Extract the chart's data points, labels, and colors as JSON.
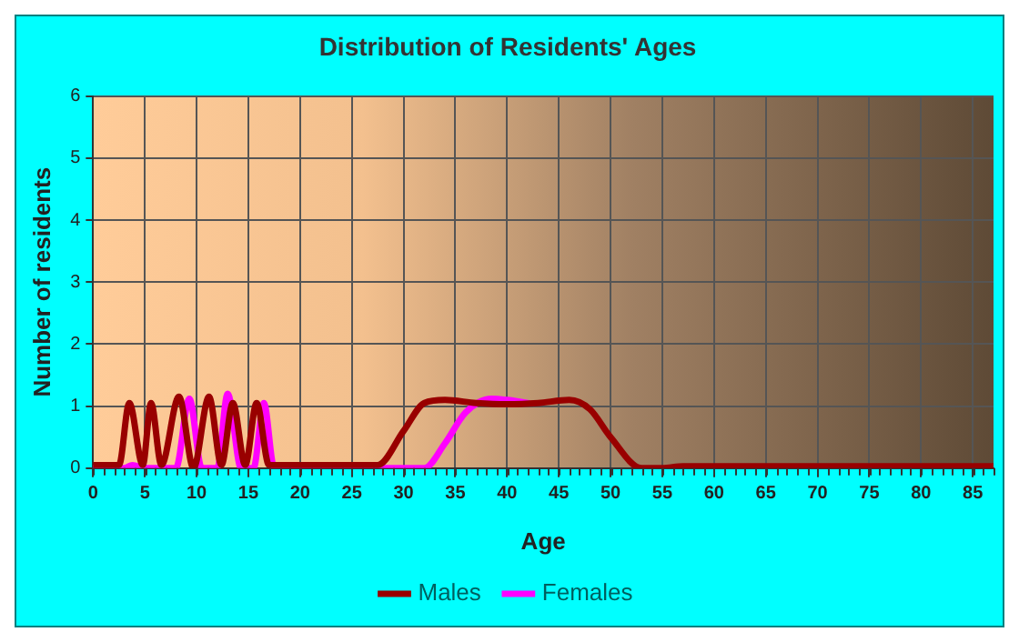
{
  "chart_data": {
    "type": "line",
    "title": "Distribution of Residents' Ages",
    "xlabel": "Age",
    "ylabel": "Number of residents",
    "xlim": [
      0,
      87
    ],
    "xticks": [
      0,
      5,
      10,
      15,
      20,
      25,
      30,
      35,
      40,
      45,
      50,
      55,
      60,
      65,
      70,
      75,
      80,
      85
    ],
    "ylim": [
      0,
      6
    ],
    "yticks": [
      0,
      1,
      2,
      3,
      4,
      5,
      6
    ],
    "grid": true,
    "legend": "bottom",
    "marker": "none",
    "line_style": "solid",
    "series": [
      {
        "name": "Males",
        "color": "#990000",
        "x": [
          0,
          2.5,
          3.5,
          4.8,
          5.6,
          6.6,
          8.3,
          9.7,
          11.2,
          12.4,
          13.5,
          14.7,
          15.8,
          17,
          20,
          27.5,
          30,
          32,
          34,
          37,
          40,
          43,
          46,
          48,
          50,
          53,
          55,
          57,
          87
        ],
        "values": [
          0.05,
          0.05,
          1.05,
          0.05,
          1.05,
          0.05,
          1.15,
          0,
          1.15,
          0.05,
          1.05,
          0.05,
          1.05,
          0.05,
          0.05,
          0.05,
          0.6,
          1.05,
          1.1,
          1.05,
          1.03,
          1.05,
          1.1,
          0.95,
          0.5,
          0,
          0,
          0.03,
          0.03
        ]
      },
      {
        "name": "Females",
        "color": "#ff00ff",
        "x": [
          0,
          3,
          3.8,
          5,
          8,
          9.3,
          10.5,
          12,
          13,
          14.3,
          15.5,
          16.5,
          17.5,
          20,
          32,
          34,
          36,
          38.5,
          40,
          42
        ],
        "values": [
          0,
          0,
          0.05,
          0,
          0,
          1.12,
          0,
          0,
          1.2,
          0,
          0,
          1.05,
          0,
          0,
          0,
          0.4,
          0.9,
          1.12,
          1.1,
          1.05
        ]
      }
    ]
  }
}
